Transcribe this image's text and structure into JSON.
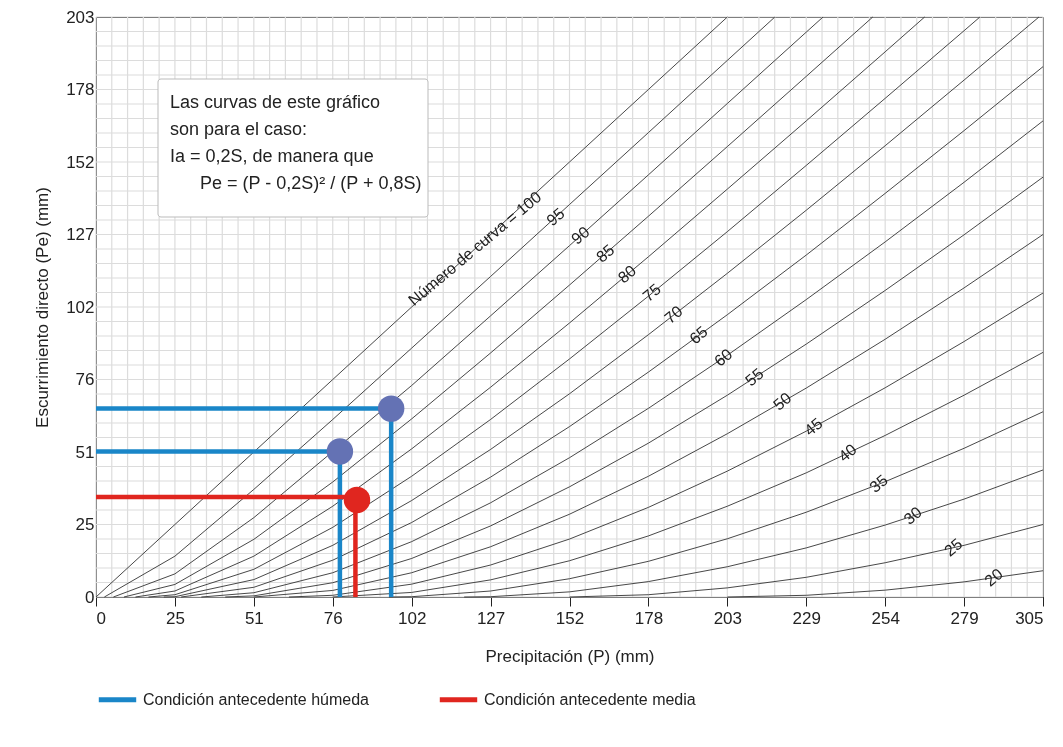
{
  "chart_data": {
    "type": "line",
    "xlabel": "Precipitación (P) (mm)",
    "ylabel": "Escurrimiento directo (Pe) (mm)",
    "xlim": [
      0,
      304.8
    ],
    "ylim": [
      0,
      203.2
    ],
    "xticks": [
      0,
      {
        "value": 25.4,
        "label": "25"
      },
      {
        "value": 50.8,
        "label": "51"
      },
      {
        "value": 76.2,
        "label": "76"
      },
      {
        "value": 101.6,
        "label": "102"
      },
      127,
      {
        "value": 152.4,
        "label": "152"
      },
      {
        "value": 177.8,
        "label": "178"
      },
      {
        "value": 203.2,
        "label": "203"
      },
      {
        "value": 228.6,
        "label": "229"
      },
      {
        "value": 254,
        "label": "254"
      },
      {
        "value": 279.4,
        "label": "279"
      },
      {
        "value": 304.8,
        "label": "305"
      }
    ],
    "yticks": [
      0,
      {
        "value": 25.4,
        "label": "25"
      },
      {
        "value": 50.8,
        "label": "51"
      },
      {
        "value": 76.2,
        "label": "76"
      },
      {
        "value": 101.6,
        "label": "102"
      },
      127,
      {
        "value": 152.4,
        "label": "152"
      },
      {
        "value": 177.8,
        "label": "178"
      },
      {
        "value": 203.2,
        "label": "203"
      }
    ],
    "grid": true,
    "legend": "bottom",
    "series": [
      {
        "color": "#333333",
        "x": [
          0,
          25.4,
          50.8,
          76.2,
          101.6,
          127,
          152.4,
          177.8,
          203.2
        ],
        "values": [
          0,
          25.4,
          50.8,
          76.2,
          101.6,
          127,
          152.4,
          177.8,
          203.2
        ]
      },
      {
        "color": "#333333",
        "x": [
          2.7,
          25.4,
          50.8,
          76.2,
          101.6,
          127,
          152.4,
          177.8,
          203.2,
          218.5
        ],
        "values": [
          0,
          14.3,
          37.7,
          62.2,
          87.2,
          112.3,
          137.5,
          162.7,
          188.0,
          203.2
        ]
      },
      {
        "color": "#333333",
        "x": [
          5.6,
          25.4,
          50.8,
          101.6,
          127,
          152.4,
          177.8,
          203.2,
          228.6,
          234.0
        ],
        "values": [
          0,
          8.1,
          27.8,
          74.1,
          98.5,
          123.1,
          147.9,
          172.9,
          197.9,
          203.2
        ]
      },
      {
        "color": "#333333",
        "x": [
          9.0,
          25.4,
          50.8,
          76.2,
          101.6,
          127,
          152.4,
          177.8,
          203.2,
          228.6,
          250.0
        ],
        "values": [
          0,
          4.4,
          20.2,
          40.3,
          62.4,
          85.5,
          109.3,
          133.4,
          157.8,
          182.4,
          203.2
        ]
      },
      {
        "color": "#333333",
        "x": [
          12.7,
          25.4,
          50.8,
          76.2,
          101.6,
          127,
          152.4,
          177.8,
          203.2,
          228.6,
          254,
          266.7
        ],
        "values": [
          0,
          2.1,
          14.3,
          31.8,
          51.9,
          73.5,
          96.0,
          119.2,
          142.9,
          166.8,
          191.0,
          203.2
        ]
      },
      {
        "color": "#333333",
        "x": [
          16.9,
          25.4,
          50.8,
          76.2,
          101.6,
          127,
          152.4,
          177.8,
          203.2,
          228.6,
          254,
          279.4,
          284.5
        ],
        "values": [
          0,
          0.8,
          9.7,
          24.4,
          42.3,
          62.2,
          83.4,
          105.4,
          128.0,
          151.2,
          174.7,
          198.4,
          203.2
        ]
      },
      {
        "color": "#333333",
        "x": [
          21.8,
          25.4,
          50.8,
          76.2,
          101.6,
          127,
          152.4,
          177.8,
          203.2,
          228.6,
          254,
          279.4,
          303.5
        ],
        "values": [
          0,
          0.1,
          6.1,
          18.1,
          33.8,
          51.7,
          71.2,
          91.9,
          113.4,
          135.5,
          158.1,
          181.1,
          203.2
        ]
      },
      {
        "color": "#333333",
        "x": [
          27.4,
          50.8,
          76.2,
          101.6,
          127,
          152.4,
          177.8,
          203.2,
          228.6,
          254,
          279.4,
          304.8
        ],
        "values": [
          0,
          3.4,
          12.9,
          26.1,
          42.0,
          59.7,
          78.8,
          98.9,
          119.8,
          141.4,
          163.4,
          185.8
        ]
      },
      {
        "color": "#333333",
        "x": [
          33.9,
          50.8,
          76.2,
          101.6,
          127,
          152.4,
          177.8,
          203.2,
          228.6,
          254,
          279.4,
          304.8
        ],
        "values": [
          0,
          1.5,
          8.5,
          19.4,
          33.0,
          48.8,
          66.1,
          84.7,
          104.2,
          124.4,
          145.3,
          166.8
        ]
      },
      {
        "color": "#333333",
        "x": [
          41.6,
          50.8,
          76.2,
          101.6,
          127,
          152.4,
          177.8,
          203.2,
          228.6,
          254,
          279.4,
          304.8
        ],
        "values": [
          0,
          0.4,
          5.0,
          13.5,
          24.9,
          38.6,
          53.9,
          70.7,
          88.6,
          107.4,
          126.9,
          147.1
        ]
      },
      {
        "color": "#333333",
        "x": [
          50.8,
          76.2,
          101.6,
          127,
          152.4,
          177.8,
          203.2,
          228.6,
          254,
          279.4,
          304.8
        ],
        "values": [
          0,
          2.3,
          8.5,
          17.6,
          29.0,
          42.3,
          57.2,
          73.2,
          90.3,
          108.3,
          127.0
        ]
      },
      {
        "color": "#333333",
        "x": [
          62.1,
          76.2,
          101.6,
          127,
          152.4,
          177.8,
          203.2,
          228.6,
          254,
          279.4,
          304.8
        ],
        "values": [
          0,
          0.6,
          4.5,
          11.2,
          20.3,
          31.4,
          44.1,
          58.1,
          73.3,
          89.5,
          106.5
        ]
      },
      {
        "color": "#333333",
        "x": [
          76.2,
          101.6,
          127,
          152.4,
          177.8,
          203.2,
          228.6,
          254,
          279.4,
          304.8
        ],
        "values": [
          0,
          1.6,
          6.0,
          12.7,
          21.4,
          31.8,
          43.5,
          56.6,
          70.7,
          85.7
        ]
      },
      {
        "color": "#333333",
        "x": [
          94.3,
          101.6,
          127,
          152.4,
          177.8,
          203.2,
          228.6,
          254,
          279.4,
          304.8
        ],
        "values": [
          0,
          0.1,
          2.1,
          6.4,
          12.5,
          20.4,
          29.7,
          40.4,
          52.1,
          64.9
        ]
      },
      {
        "color": "#333333",
        "x": [
          118.5,
          127,
          152.4,
          177.8,
          203.2,
          228.6,
          254,
          279.4,
          304.8
        ],
        "values": [
          0,
          0.1,
          1.8,
          5.4,
          10.6,
          17.2,
          25.2,
          34.3,
          44.5
        ]
      },
      {
        "color": "#333333",
        "x": [
          152.4,
          177.8,
          203.2,
          228.6,
          254,
          279.4,
          304.8
        ],
        "values": [
          0,
          0.8,
          3.2,
          6.9,
          12.0,
          18.1,
          25.4
        ]
      },
      {
        "color": "#333333",
        "x": [
          203.2,
          228.6,
          254,
          279.4,
          304.8
        ],
        "values": [
          0,
          0.6,
          2.4,
          5.3,
          9.2
        ]
      },
      {
        "name": "Condición antecedente húmeda",
        "color": "#1a86c8",
        "x": [
          0,
          95,
          95,
          null,
          0,
          78.5,
          78.5
        ],
        "values": [
          66,
          66,
          0,
          null,
          51,
          51,
          0
        ]
      },
      {
        "name": "Condición antecedente media",
        "color": "#e0261f",
        "x": [
          0,
          83.5,
          83.5
        ],
        "values": [
          35,
          35,
          0
        ]
      },
      {
        "type": "scatter",
        "color": "#6472b4",
        "x": [
          95,
          78.5
        ],
        "values": [
          66,
          51
        ]
      },
      {
        "type": "scatter",
        "color": "#e0261f",
        "x": [
          84
        ],
        "values": [
          34
        ]
      }
    ],
    "annotations": [
      "Las curvas de este gráfico",
      "son para el caso:",
      "Ia = 0,2S, de manera que",
      "Pe = (P - 0,2S)² / (P + 0,8S)",
      {
        "text": "Número de curva = 100",
        "x": 122,
        "y": 122
      },
      {
        "text": "95",
        "x": 148,
        "y": 133.1
      },
      {
        "text": "90",
        "x": 156,
        "y": 126.6
      },
      {
        "text": "85",
        "x": 164,
        "y": 120.3
      },
      {
        "text": "80",
        "x": 171,
        "y": 113.0
      },
      {
        "text": "75",
        "x": 179,
        "y": 106.5
      },
      {
        "text": "70",
        "x": 186,
        "y": 98.8
      },
      {
        "text": "65",
        "x": 194,
        "y": 91.6
      },
      {
        "text": "60",
        "x": 202,
        "y": 83.8
      },
      {
        "text": "55",
        "x": 212,
        "y": 76.9
      },
      {
        "text": "50",
        "x": 221,
        "y": 68.4
      },
      {
        "text": "45",
        "x": 231,
        "y": 59.5
      },
      {
        "text": "40",
        "x": 242,
        "y": 50.4
      },
      {
        "text": "35",
        "x": 252,
        "y": 39.6
      },
      {
        "text": "30",
        "x": 263,
        "y": 28.4
      },
      {
        "text": "25",
        "x": 276,
        "y": 17.3
      },
      {
        "text": "20",
        "x": 289,
        "y": 6.8
      }
    ]
  }
}
